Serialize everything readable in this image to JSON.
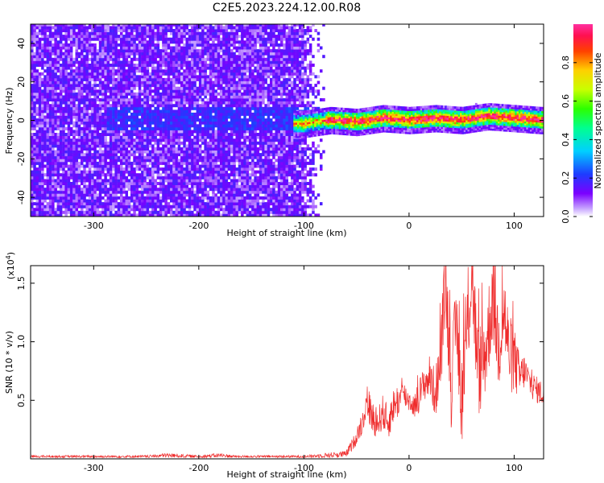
{
  "title": "C2E5.2023.224.12.00.R08",
  "colors": {
    "snr_line": "#ef2b2b",
    "spectrogram_scale": "rainbow (violet to red)"
  },
  "chart_data": [
    {
      "type": "heatmap",
      "title": "C2E5.2023.224.12.00.R08",
      "xlabel": "Height of straight line (km)",
      "ylabel": "Frequency (Hz)",
      "xlim": [
        -360,
        128
      ],
      "ylim": [
        -50,
        50
      ],
      "x_ticks": [
        -300,
        -200,
        -100,
        0,
        100
      ],
      "x_tick_labels": [
        "-300",
        "-200",
        "-100",
        "0",
        "100"
      ],
      "y_ticks": [
        -40,
        -20,
        0,
        20,
        40
      ],
      "y_tick_labels": [
        "-40",
        "-20",
        "0",
        "20",
        "40"
      ],
      "colorbar": {
        "label": "Normalized spectral amplitude",
        "range": [
          0,
          1
        ],
        "ticks": [
          0.0,
          0.2,
          0.4,
          0.6,
          0.8
        ],
        "tick_labels": [
          "0.0",
          "0.2",
          "0.4",
          "0.6",
          "0.8"
        ]
      },
      "regions": [
        {
          "x_range": [
            -360,
            -80
          ],
          "frequency_range": [
            -50,
            50
          ],
          "amplitude": "low (0.05-0.25), noise"
        },
        {
          "x_range": [
            -80,
            128
          ],
          "frequency_range": [
            -6,
            6
          ],
          "amplitude": "high (0.4-0.95), narrow band near 0 Hz"
        }
      ],
      "band_center_hz": [
        {
          "x": -100,
          "y": -2
        },
        {
          "x": -75,
          "y": 0
        },
        {
          "x": -50,
          "y": -1
        },
        {
          "x": -25,
          "y": 1
        },
        {
          "x": 0,
          "y": 0
        },
        {
          "x": 25,
          "y": 1
        },
        {
          "x": 50,
          "y": 0
        },
        {
          "x": 75,
          "y": 2
        },
        {
          "x": 100,
          "y": 1
        },
        {
          "x": 125,
          "y": 0
        }
      ],
      "grid": false
    },
    {
      "type": "line",
      "xlabel": "Height of straight line (km)",
      "ylabel": "SNR (10 * v/v)",
      "y_multiplier_label": "(x10",
      "y_multiplier_exp": "4",
      "y_multiplier_close": ")",
      "xlim": [
        -360,
        128
      ],
      "ylim": [
        0,
        1.65
      ],
      "x_ticks": [
        -300,
        -200,
        -100,
        0,
        100
      ],
      "x_tick_labels": [
        "-300",
        "-200",
        "-100",
        "0",
        "100"
      ],
      "y_ticks": [
        0.5,
        1.0,
        1.5
      ],
      "y_tick_labels": [
        "0.5",
        "1.0",
        "1.5"
      ],
      "series": [
        {
          "x": [
            -360,
            -300,
            -250,
            -230,
            -200,
            -180,
            -165,
            -150,
            -100,
            -60,
            -52,
            -45,
            -40,
            -35,
            -30,
            -25,
            -20,
            -15,
            -10,
            -5,
            0,
            5,
            10,
            15,
            20,
            25,
            30,
            35,
            40,
            45,
            50,
            55,
            60,
            65,
            70,
            75,
            80,
            85,
            90,
            95,
            100,
            105,
            110,
            115,
            120,
            128
          ],
          "values": [
            0.02,
            0.02,
            0.02,
            0.03,
            0.02,
            0.03,
            0.02,
            0.02,
            0.02,
            0.04,
            0.15,
            0.3,
            0.5,
            0.35,
            0.3,
            0.4,
            0.3,
            0.45,
            0.5,
            0.55,
            0.5,
            0.45,
            0.55,
            0.65,
            0.7,
            0.55,
            0.85,
            1.55,
            0.6,
            1.2,
            0.5,
            1.05,
            1.65,
            0.75,
            0.8,
            1.05,
            1.45,
            0.95,
            1.3,
            0.9,
            0.85,
            0.7,
            0.75,
            0.65,
            0.6,
            0.55
          ],
          "spread": [
            0.01,
            0.01,
            0.01,
            0.02,
            0.01,
            0.02,
            0.01,
            0.01,
            0.01,
            0.03,
            0.06,
            0.1,
            0.15,
            0.15,
            0.12,
            0.15,
            0.15,
            0.15,
            0.15,
            0.12,
            0.1,
            0.1,
            0.15,
            0.15,
            0.2,
            0.2,
            0.3,
            0.35,
            0.35,
            0.35,
            0.4,
            0.4,
            0.45,
            0.4,
            0.4,
            0.4,
            0.45,
            0.4,
            0.4,
            0.35,
            0.3,
            0.2,
            0.15,
            0.12,
            0.12,
            0.1
          ]
        }
      ],
      "grid": false
    }
  ]
}
